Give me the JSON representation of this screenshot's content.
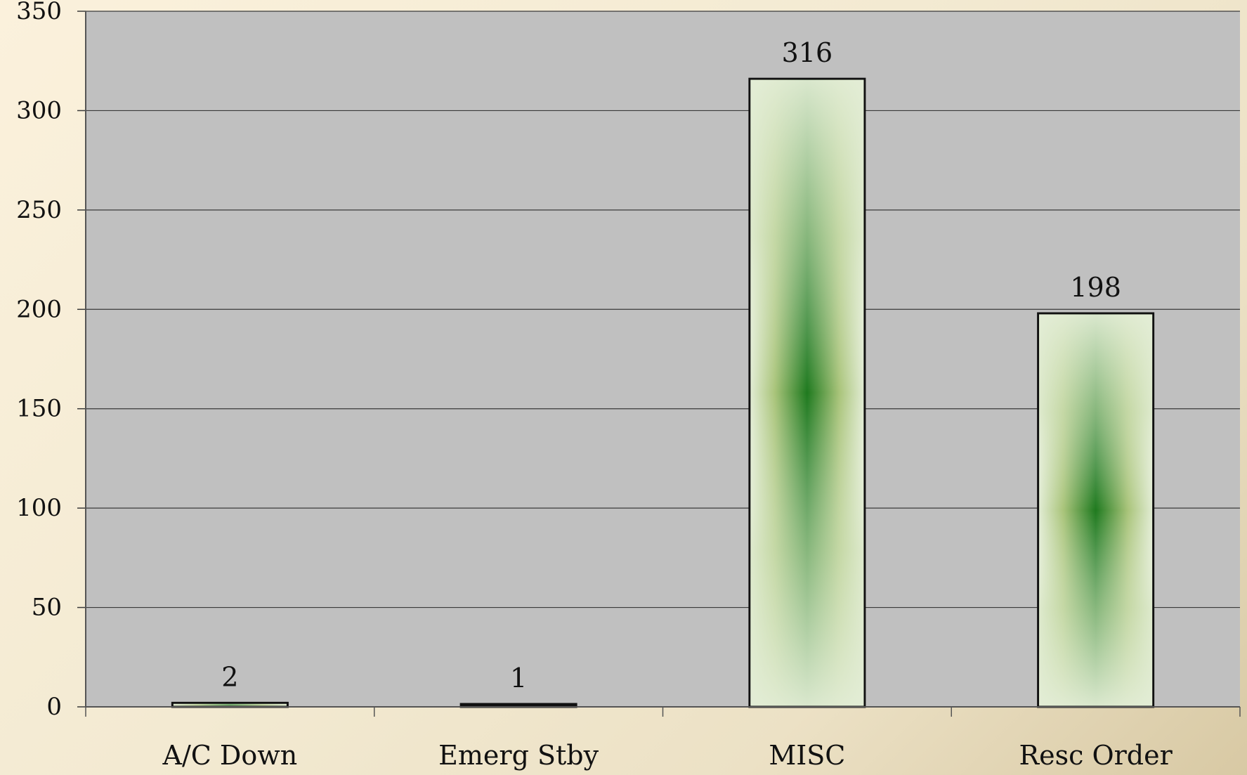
{
  "chart_data": {
    "type": "bar",
    "title": "",
    "xlabel": "",
    "ylabel": "",
    "categories": [
      "A/C Down",
      "Emerg Stby",
      "MISC",
      "Resc Order"
    ],
    "values": [
      2,
      1,
      316,
      198
    ],
    "data_labels": [
      "2",
      "1",
      "316",
      "198"
    ],
    "ylim": [
      0,
      350
    ],
    "y_ticks": [
      "0",
      "50",
      "100",
      "150",
      "200",
      "250",
      "300",
      "350"
    ],
    "y_tick_values": [
      0,
      50,
      100,
      150,
      200,
      250,
      300,
      350
    ],
    "grid": true,
    "legend": "none"
  },
  "colors": {
    "plot_background": "#c0c0c0",
    "gridline": "#3a3a3a",
    "bar_light": "#e3edd6",
    "bar_mid": "#9cb96a",
    "bar_dark": "#1f7a1f",
    "bar_outline": "#111111",
    "page_background_light": "#fbf1dc",
    "page_background_dark": "#d8c9a4"
  }
}
